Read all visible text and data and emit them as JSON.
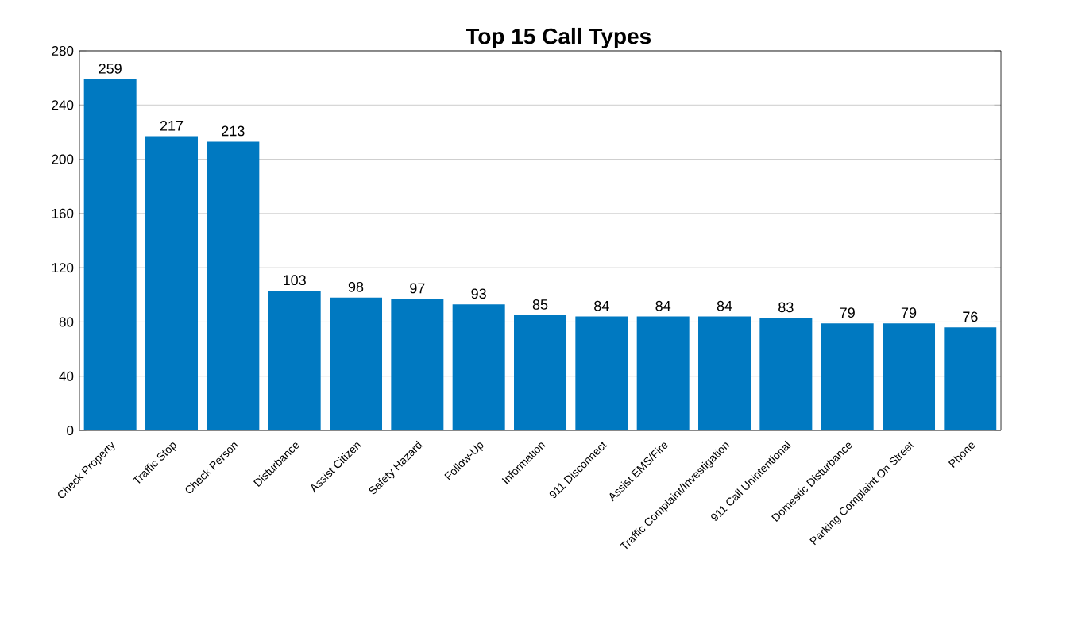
{
  "chart_data": {
    "type": "bar",
    "title": "Top 15 Call Types",
    "categories": [
      "Check Property",
      "Traffic Stop",
      "Check Person",
      "Disturbance",
      "Assist Citizen",
      "Safety Hazard",
      "Follow-Up",
      "Information",
      "911 Disconnect",
      "Assist EMS/Fire",
      "Traffic Complaint/Investigation",
      "911 Call Unintentional",
      "Domestic Disturbance",
      "Parking Complaint On Street",
      "Phone"
    ],
    "values": [
      259,
      217,
      213,
      103,
      98,
      97,
      93,
      85,
      84,
      84,
      84,
      83,
      79,
      79,
      76
    ],
    "color": "#0079c1",
    "ylim": [
      0,
      280
    ],
    "yticks": [
      0,
      40,
      80,
      120,
      160,
      200,
      240,
      280
    ],
    "grid": "y",
    "data_labels": true
  }
}
